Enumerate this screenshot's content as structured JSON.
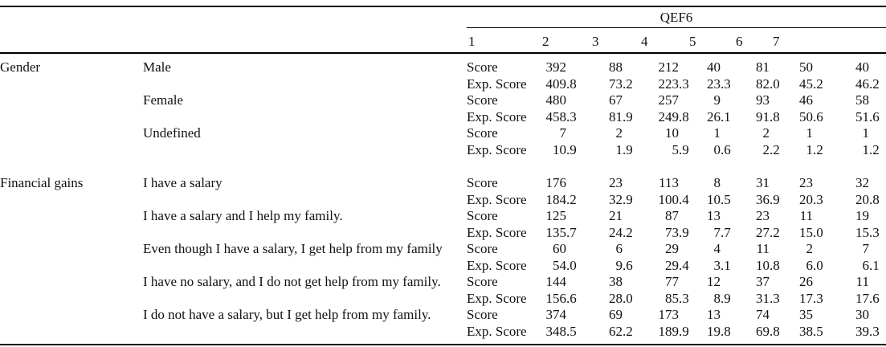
{
  "table": {
    "group_header": "QEF6",
    "column_headers": [
      "1",
      "2",
      "3",
      "4",
      "5",
      "6",
      "7"
    ],
    "row_labels": {
      "score": "Score",
      "exp_score": "Exp. Score"
    },
    "sections": [
      {
        "category": "Gender",
        "items": [
          {
            "label": "Male",
            "score": [
              "392",
              "88",
              "212",
              "40",
              "81",
              "50",
              "40"
            ],
            "exp_score": [
              "409.8",
              "73.2",
              "223.3",
              "23.3",
              "82.0",
              "45.2",
              "46.2"
            ]
          },
          {
            "label": "Female",
            "score": [
              "480",
              "67",
              "257",
              "9",
              "93",
              "46",
              "58"
            ],
            "exp_score": [
              "458.3",
              "81.9",
              "249.8",
              "26.1",
              "91.8",
              "50.6",
              "51.6"
            ]
          },
          {
            "label": "Undefined",
            "score": [
              "7",
              "2",
              "10",
              "1",
              "2",
              "1",
              "1"
            ],
            "exp_score": [
              "10.9",
              "1.9",
              "5.9",
              "0.6",
              "2.2",
              "1.2",
              "1.2"
            ]
          }
        ]
      },
      {
        "category": "Financial gains",
        "items": [
          {
            "label": "I have a salary",
            "score": [
              "176",
              "23",
              "113",
              "8",
              "31",
              "23",
              "32"
            ],
            "exp_score": [
              "184.2",
              "32.9",
              "100.4",
              "10.5",
              "36.9",
              "20.3",
              "20.8"
            ]
          },
          {
            "label": "I have a salary and I help my family.",
            "score": [
              "125",
              "21",
              "87",
              "13",
              "23",
              "11",
              "19"
            ],
            "exp_score": [
              "135.7",
              "24.2",
              "73.9",
              "7.7",
              "27.2",
              "15.0",
              "15.3"
            ]
          },
          {
            "label": "Even though I have a salary, I get help from my family",
            "score": [
              "60",
              "6",
              "29",
              "4",
              "11",
              "2",
              "7"
            ],
            "exp_score": [
              "54.0",
              "9.6",
              "29.4",
              "3.1",
              "10.8",
              "6.0",
              "6.1"
            ]
          },
          {
            "label": "I have no salary, and I do not get help from my family.",
            "score": [
              "144",
              "38",
              "77",
              "12",
              "37",
              "26",
              "11"
            ],
            "exp_score": [
              "156.6",
              "28.0",
              "85.3",
              "8.9",
              "31.3",
              "17.3",
              "17.6"
            ]
          },
          {
            "label": "I do not have a salary, but I get help from my family.",
            "score": [
              "374",
              "69",
              "173",
              "13",
              "74",
              "35",
              "30"
            ],
            "exp_score": [
              "348.5",
              "62.2",
              "189.9",
              "19.8",
              "69.8",
              "38.5",
              "39.3"
            ]
          }
        ]
      }
    ]
  }
}
